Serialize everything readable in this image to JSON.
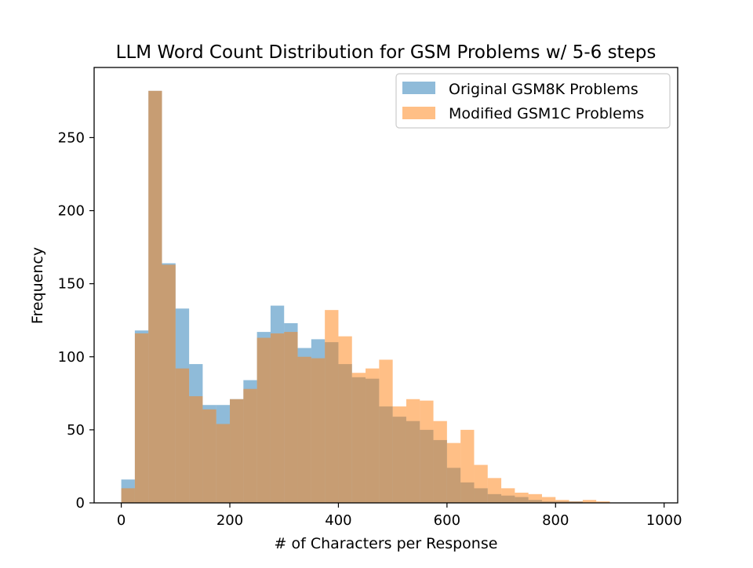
{
  "chart_data": {
    "type": "bar",
    "title": "LLM Word Count Distribution for GSM Problems w/ 5-6 steps",
    "xlabel": "# of Characters per Response",
    "ylabel": "Frequency",
    "xlim": [
      -50,
      1025
    ],
    "ylim": [
      0,
      298
    ],
    "xticks": [
      0,
      200,
      400,
      600,
      800,
      1000
    ],
    "yticks": [
      0,
      50,
      100,
      150,
      200,
      250
    ],
    "grid": false,
    "legend_position": "top-right",
    "bin_width": 25,
    "bin_start": 0,
    "series": [
      {
        "name": "Original GSM8K Problems",
        "color": "#1f77b4",
        "alpha": 0.5,
        "values": [
          16,
          118,
          282,
          164,
          133,
          95,
          67,
          67,
          71,
          84,
          117,
          135,
          123,
          106,
          112,
          110,
          95,
          86,
          85,
          66,
          59,
          56,
          50,
          43,
          24,
          14,
          10,
          6,
          5,
          4,
          2,
          1,
          1,
          1,
          0,
          0,
          0
        ]
      },
      {
        "name": "Modified GSM1C Problems",
        "color": "#ff7f0e",
        "alpha": 0.5,
        "values": [
          10,
          116,
          282,
          163,
          92,
          73,
          64,
          54,
          71,
          78,
          113,
          116,
          117,
          100,
          99,
          132,
          114,
          89,
          92,
          98,
          66,
          71,
          70,
          56,
          41,
          50,
          26,
          17,
          10,
          7,
          6,
          4,
          2,
          1,
          2,
          1,
          0
        ]
      }
    ]
  }
}
